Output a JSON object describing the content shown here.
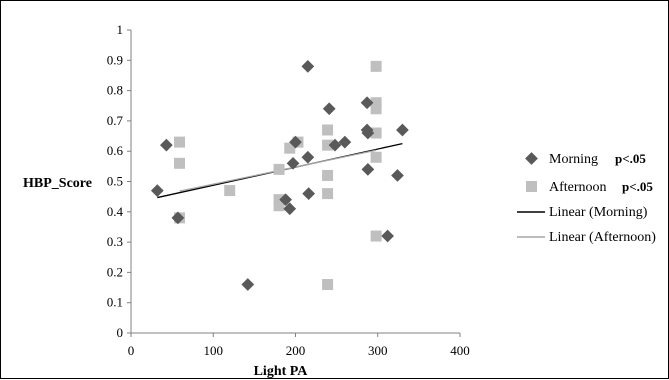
{
  "chart_data": {
    "type": "scatter",
    "xlabel": "Light PA",
    "ylabel": "HBP_Score",
    "xlim": [
      0,
      400
    ],
    "ylim": [
      0,
      1
    ],
    "x_ticks": [
      "0",
      "100",
      "200",
      "300",
      "400"
    ],
    "y_ticks": [
      "0",
      "0.1",
      "0.2",
      "0.3",
      "0.4",
      "0.5",
      "0.6",
      "0.7",
      "0.8",
      "0.9",
      "1"
    ],
    "grid": false,
    "legend_position": "right",
    "series": [
      {
        "name": "Morning",
        "note": "p<.05",
        "marker": "diamond",
        "color": "#595959",
        "points": [
          {
            "x": 32,
            "y": 0.47
          },
          {
            "x": 43,
            "y": 0.62
          },
          {
            "x": 57,
            "y": 0.38
          },
          {
            "x": 142,
            "y": 0.16
          },
          {
            "x": 188,
            "y": 0.44
          },
          {
            "x": 193,
            "y": 0.41
          },
          {
            "x": 197,
            "y": 0.56
          },
          {
            "x": 200,
            "y": 0.63
          },
          {
            "x": 215,
            "y": 0.88
          },
          {
            "x": 215,
            "y": 0.58
          },
          {
            "x": 216,
            "y": 0.46
          },
          {
            "x": 241,
            "y": 0.74
          },
          {
            "x": 248,
            "y": 0.62
          },
          {
            "x": 260,
            "y": 0.63
          },
          {
            "x": 287,
            "y": 0.76
          },
          {
            "x": 287,
            "y": 0.67
          },
          {
            "x": 288,
            "y": 0.66
          },
          {
            "x": 288,
            "y": 0.54
          },
          {
            "x": 312,
            "y": 0.32
          },
          {
            "x": 324,
            "y": 0.52
          },
          {
            "x": 330,
            "y": 0.67
          }
        ]
      },
      {
        "name": "Afternoon",
        "note": "p<.05",
        "marker": "square",
        "color": "#bfbfbf",
        "points": [
          {
            "x": 59,
            "y": 0.63
          },
          {
            "x": 59,
            "y": 0.56
          },
          {
            "x": 59,
            "y": 0.38
          },
          {
            "x": 120,
            "y": 0.47
          },
          {
            "x": 180,
            "y": 0.54
          },
          {
            "x": 180,
            "y": 0.44
          },
          {
            "x": 180,
            "y": 0.42
          },
          {
            "x": 193,
            "y": 0.61
          },
          {
            "x": 203,
            "y": 0.63
          },
          {
            "x": 239,
            "y": 0.67
          },
          {
            "x": 239,
            "y": 0.62
          },
          {
            "x": 239,
            "y": 0.52
          },
          {
            "x": 239,
            "y": 0.46
          },
          {
            "x": 239,
            "y": 0.16
          },
          {
            "x": 298,
            "y": 0.88
          },
          {
            "x": 298,
            "y": 0.76
          },
          {
            "x": 298,
            "y": 0.74
          },
          {
            "x": 298,
            "y": 0.66
          },
          {
            "x": 298,
            "y": 0.58
          },
          {
            "x": 298,
            "y": 0.32
          }
        ]
      }
    ],
    "trendlines": [
      {
        "name": "Linear (Morning)",
        "color": "#000000",
        "x": [
          32,
          330
        ],
        "y": [
          0.447,
          0.625
        ]
      },
      {
        "name": "Linear (Afternoon)",
        "color": "#a6a6a6",
        "x": [
          59,
          298
        ],
        "y": [
          0.468,
          0.603
        ]
      }
    ]
  }
}
